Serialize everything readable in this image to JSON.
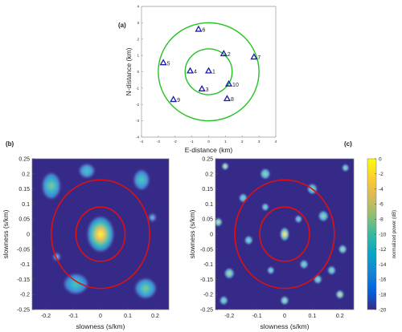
{
  "chart_data": [
    {
      "panel": "(a)",
      "type": "scatter",
      "xlabel": "E-distance (km)",
      "ylabel": "N-distance (km)",
      "xlim": [
        -4,
        4
      ],
      "ylim": [
        -4,
        4
      ],
      "xticks": [
        "-4",
        "-3",
        "-2",
        "-1",
        "0",
        "1",
        "2",
        "3",
        "4"
      ],
      "yticks": [
        "-4",
        "-3",
        "-2",
        "-1",
        "0",
        "1",
        "2",
        "3",
        "4"
      ],
      "marker": "triangle",
      "marker_color": "#1a1aa8",
      "circle_color": "#22c322",
      "circle_radii_km": [
        1.4,
        3.0
      ],
      "stations": [
        {
          "label": "1",
          "x": 0.0,
          "y": 0.05
        },
        {
          "label": "2",
          "x": 0.9,
          "y": 1.1
        },
        {
          "label": "3",
          "x": -0.4,
          "y": -1.05
        },
        {
          "label": "4",
          "x": -1.1,
          "y": 0.05
        },
        {
          "label": "5",
          "x": -2.7,
          "y": 0.55
        },
        {
          "label": "6",
          "x": -0.6,
          "y": 2.6
        },
        {
          "label": "7",
          "x": 2.7,
          "y": 0.9
        },
        {
          "label": "8",
          "x": 1.1,
          "y": -1.65
        },
        {
          "label": "9",
          "x": -2.1,
          "y": -1.7
        },
        {
          "label": "10",
          "x": 1.2,
          "y": -0.75
        }
      ]
    },
    {
      "panel": "(b)",
      "type": "heatmap",
      "xlabel": "slowness (s/km)",
      "ylabel": "slowness (s/km)",
      "xlim": [
        -0.25,
        0.25
      ],
      "ylim": [
        -0.25,
        0.25
      ],
      "xticks": [
        "-0.2",
        "-0.1",
        "0",
        "0.1",
        "0.2"
      ],
      "yticks": [
        "0.25",
        "0.2",
        "0.15",
        "0.1",
        "0.05",
        "0",
        "-0.05",
        "-0.1",
        "-0.15",
        "-0.2",
        "-0.25"
      ],
      "circle_color": "#e01010",
      "circle_radii": [
        0.09,
        0.18
      ],
      "peaks": [
        {
          "x": 0.0,
          "y": 0.0,
          "power_db": 0,
          "sx": 0.045,
          "sy": 0.055
        },
        {
          "x": -0.18,
          "y": 0.16,
          "power_db": -8,
          "sx": 0.03,
          "sy": 0.04
        },
        {
          "x": -0.05,
          "y": 0.21,
          "power_db": -11,
          "sx": 0.025,
          "sy": 0.02
        },
        {
          "x": 0.15,
          "y": 0.18,
          "power_db": -10,
          "sx": 0.025,
          "sy": 0.03
        },
        {
          "x": 0.19,
          "y": 0.055,
          "power_db": -15,
          "sx": 0.01,
          "sy": 0.01
        },
        {
          "x": -0.16,
          "y": -0.075,
          "power_db": -16,
          "sx": 0.01,
          "sy": 0.01
        },
        {
          "x": -0.09,
          "y": -0.165,
          "power_db": -10,
          "sx": 0.04,
          "sy": 0.03
        },
        {
          "x": 0.165,
          "y": -0.18,
          "power_db": -8,
          "sx": 0.035,
          "sy": 0.03
        }
      ]
    },
    {
      "panel": "(c)",
      "type": "heatmap",
      "xlabel": "slowness (s/km)",
      "ylabel": "slowness (s/km)",
      "xlim": [
        -0.25,
        0.25
      ],
      "ylim": [
        -0.25,
        0.25
      ],
      "xticks": [
        "-0.2",
        "-0.1",
        "0",
        "0.1",
        "0.2"
      ],
      "yticks": [
        "0.25",
        "0.2",
        "0.15",
        "0.1",
        "0.05",
        "0",
        "-0.05",
        "-0.1",
        "-0.15",
        "-0.2",
        "-0.25"
      ],
      "circle_color": "#e01010",
      "circle_radii": [
        0.09,
        0.18
      ],
      "colorbar": {
        "label": "normalized power (dB)",
        "range": [
          -20,
          0
        ],
        "ticks": [
          "0",
          "-2",
          "-4",
          "-6",
          "-8",
          "-10",
          "-12",
          "-14",
          "-16",
          "-18",
          "-20"
        ]
      },
      "peaks": [
        {
          "x": 0.0,
          "y": 0.0,
          "power_db": 0,
          "sx": 0.014,
          "sy": 0.02
        },
        {
          "x": -0.215,
          "y": 0.225,
          "power_db": -3,
          "sx": 0.01,
          "sy": 0.01
        },
        {
          "x": -0.24,
          "y": 0.04,
          "power_db": -4,
          "sx": 0.012,
          "sy": 0.012
        },
        {
          "x": -0.2,
          "y": -0.13,
          "power_db": -5,
          "sx": 0.015,
          "sy": 0.015
        },
        {
          "x": -0.07,
          "y": 0.2,
          "power_db": -7,
          "sx": 0.015,
          "sy": 0.015
        },
        {
          "x": 0.1,
          "y": 0.15,
          "power_db": -8,
          "sx": 0.015,
          "sy": 0.015
        },
        {
          "x": 0.14,
          "y": 0.06,
          "power_db": -7,
          "sx": 0.015,
          "sy": 0.015
        },
        {
          "x": 0.22,
          "y": 0.22,
          "power_db": -9,
          "sx": 0.01,
          "sy": 0.01
        },
        {
          "x": 0.21,
          "y": -0.05,
          "power_db": -6,
          "sx": 0.012,
          "sy": 0.012
        },
        {
          "x": 0.2,
          "y": -0.2,
          "power_db": -3,
          "sx": 0.012,
          "sy": 0.012
        },
        {
          "x": 0.0,
          "y": -0.22,
          "power_db": -6,
          "sx": 0.012,
          "sy": 0.012
        },
        {
          "x": -0.13,
          "y": -0.02,
          "power_db": -9,
          "sx": 0.012,
          "sy": 0.012
        },
        {
          "x": -0.07,
          "y": 0.09,
          "power_db": -10,
          "sx": 0.01,
          "sy": 0.01
        },
        {
          "x": 0.07,
          "y": -0.1,
          "power_db": -9,
          "sx": 0.012,
          "sy": 0.012
        },
        {
          "x": -0.05,
          "y": -0.12,
          "power_db": -10,
          "sx": 0.01,
          "sy": 0.01
        },
        {
          "x": 0.12,
          "y": -0.15,
          "power_db": -8,
          "sx": 0.012,
          "sy": 0.012
        },
        {
          "x": -0.15,
          "y": 0.12,
          "power_db": -10,
          "sx": 0.012,
          "sy": 0.012
        },
        {
          "x": 0.05,
          "y": 0.05,
          "power_db": -12,
          "sx": 0.01,
          "sy": 0.01
        },
        {
          "x": -0.22,
          "y": -0.22,
          "power_db": -8,
          "sx": 0.012,
          "sy": 0.012
        },
        {
          "x": 0.17,
          "y": -0.12,
          "power_db": -8,
          "sx": 0.012,
          "sy": 0.012
        }
      ]
    }
  ]
}
